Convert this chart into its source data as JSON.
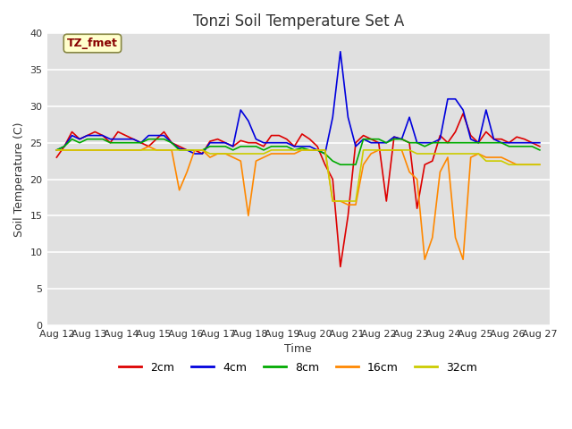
{
  "title": "Tonzi Soil Temperature Set A",
  "xlabel": "Time",
  "ylabel": "Soil Temperature (C)",
  "annotation": "TZ_fmet",
  "xlim_labels": [
    "Aug 12",
    "Aug 13",
    "Aug 14",
    "Aug 15",
    "Aug 16",
    "Aug 17",
    "Aug 18",
    "Aug 19",
    "Aug 20",
    "Aug 21",
    "Aug 22",
    "Aug 23",
    "Aug 24",
    "Aug 25",
    "Aug 26",
    "Aug 27"
  ],
  "n_days": 16,
  "pts_per_day": 4,
  "ylim": [
    0,
    40
  ],
  "yticks": [
    0,
    5,
    10,
    15,
    20,
    25,
    30,
    35,
    40
  ],
  "bg_color": "#e0e0e0",
  "grid_color": "#ffffff",
  "annotation_bbox_color": "#ffffcc",
  "annotation_text_color": "#880000",
  "annotation_border_color": "#888844",
  "legend_colors": {
    "2cm": "#dd0000",
    "4cm": "#0000dd",
    "8cm": "#00aa00",
    "16cm": "#ff8800",
    "32cm": "#cccc00"
  },
  "series_2cm": [
    23.0,
    24.5,
    26.5,
    25.5,
    26.0,
    26.5,
    26.0,
    25.0,
    26.5,
    26.0,
    25.5,
    25.0,
    24.5,
    25.5,
    26.5,
    25.0,
    24.5,
    24.0,
    24.0,
    23.5,
    25.2,
    25.5,
    25.0,
    24.5,
    25.3,
    25.0,
    25.0,
    24.5,
    26.0,
    26.0,
    25.5,
    24.5,
    26.2,
    25.5,
    24.5,
    22.0,
    20.0,
    8.0,
    15.0,
    25.0,
    26.0,
    25.5,
    25.0,
    17.0,
    25.8,
    25.5,
    25.0,
    16.0,
    22.0,
    22.5,
    26.0,
    25.0,
    26.5,
    29.0,
    26.0,
    25.0,
    26.5,
    25.5,
    25.5,
    25.0,
    25.8,
    25.5,
    25.0,
    24.5
  ],
  "series_4cm": [
    24.0,
    24.5,
    26.0,
    25.5,
    26.0,
    26.0,
    26.0,
    25.5,
    25.5,
    25.5,
    25.5,
    25.0,
    26.0,
    26.0,
    26.0,
    25.0,
    24.2,
    24.0,
    23.5,
    23.5,
    25.0,
    25.0,
    25.0,
    24.5,
    29.5,
    28.0,
    25.5,
    25.0,
    25.0,
    25.0,
    25.0,
    24.5,
    24.5,
    24.5,
    24.0,
    23.5,
    28.5,
    37.5,
    28.5,
    24.5,
    25.5,
    25.0,
    25.0,
    25.0,
    25.8,
    25.5,
    28.5,
    25.0,
    25.0,
    25.0,
    25.5,
    31.0,
    31.0,
    29.5,
    25.5,
    25.0,
    29.5,
    25.5,
    25.0,
    25.0,
    25.0,
    25.0,
    25.0,
    25.0
  ],
  "series_8cm": [
    24.0,
    24.5,
    25.5,
    25.0,
    25.5,
    25.5,
    25.5,
    25.0,
    25.0,
    25.0,
    25.0,
    25.0,
    25.5,
    25.5,
    25.5,
    25.0,
    24.0,
    24.0,
    24.0,
    24.0,
    24.5,
    24.5,
    24.5,
    24.0,
    24.5,
    24.5,
    24.5,
    24.0,
    24.5,
    24.5,
    24.5,
    24.0,
    24.3,
    24.0,
    24.0,
    23.5,
    22.5,
    22.0,
    22.0,
    22.0,
    25.5,
    25.5,
    25.5,
    25.0,
    25.5,
    25.5,
    25.0,
    25.0,
    24.5,
    25.0,
    25.0,
    25.0,
    25.0,
    25.0,
    25.0,
    25.0,
    25.0,
    25.0,
    25.0,
    24.5,
    24.5,
    24.5,
    24.5,
    24.0
  ],
  "series_16cm": [
    24.0,
    24.0,
    24.0,
    24.0,
    24.0,
    24.0,
    24.0,
    24.0,
    24.0,
    24.0,
    24.0,
    24.0,
    24.5,
    24.0,
    24.0,
    24.0,
    18.5,
    21.0,
    24.0,
    24.0,
    23.0,
    23.5,
    23.5,
    23.0,
    22.5,
    15.0,
    22.5,
    23.0,
    23.5,
    23.5,
    23.5,
    23.5,
    24.0,
    24.0,
    24.0,
    24.0,
    17.0,
    17.0,
    16.5,
    16.5,
    22.0,
    23.5,
    24.0,
    24.0,
    24.0,
    24.0,
    21.0,
    20.0,
    9.0,
    12.0,
    21.0,
    23.0,
    12.0,
    9.0,
    23.0,
    23.5,
    23.0,
    23.0,
    23.0,
    22.5,
    22.0,
    22.0,
    22.0,
    22.0
  ],
  "series_32cm": [
    24.0,
    24.0,
    24.0,
    24.0,
    24.0,
    24.0,
    24.0,
    24.0,
    24.0,
    24.0,
    24.0,
    24.0,
    24.0,
    24.0,
    24.0,
    24.0,
    24.0,
    24.0,
    24.0,
    24.0,
    23.5,
    23.5,
    23.5,
    23.5,
    23.5,
    23.5,
    23.5,
    23.5,
    24.0,
    24.0,
    24.0,
    24.0,
    24.0,
    24.0,
    24.0,
    24.0,
    17.0,
    17.0,
    17.0,
    17.0,
    24.0,
    24.0,
    24.0,
    24.0,
    24.0,
    24.0,
    24.0,
    23.5,
    23.5,
    23.5,
    23.5,
    23.5,
    23.5,
    23.5,
    23.5,
    23.5,
    22.5,
    22.5,
    22.5,
    22.0,
    22.0,
    22.0,
    22.0,
    22.0
  ]
}
